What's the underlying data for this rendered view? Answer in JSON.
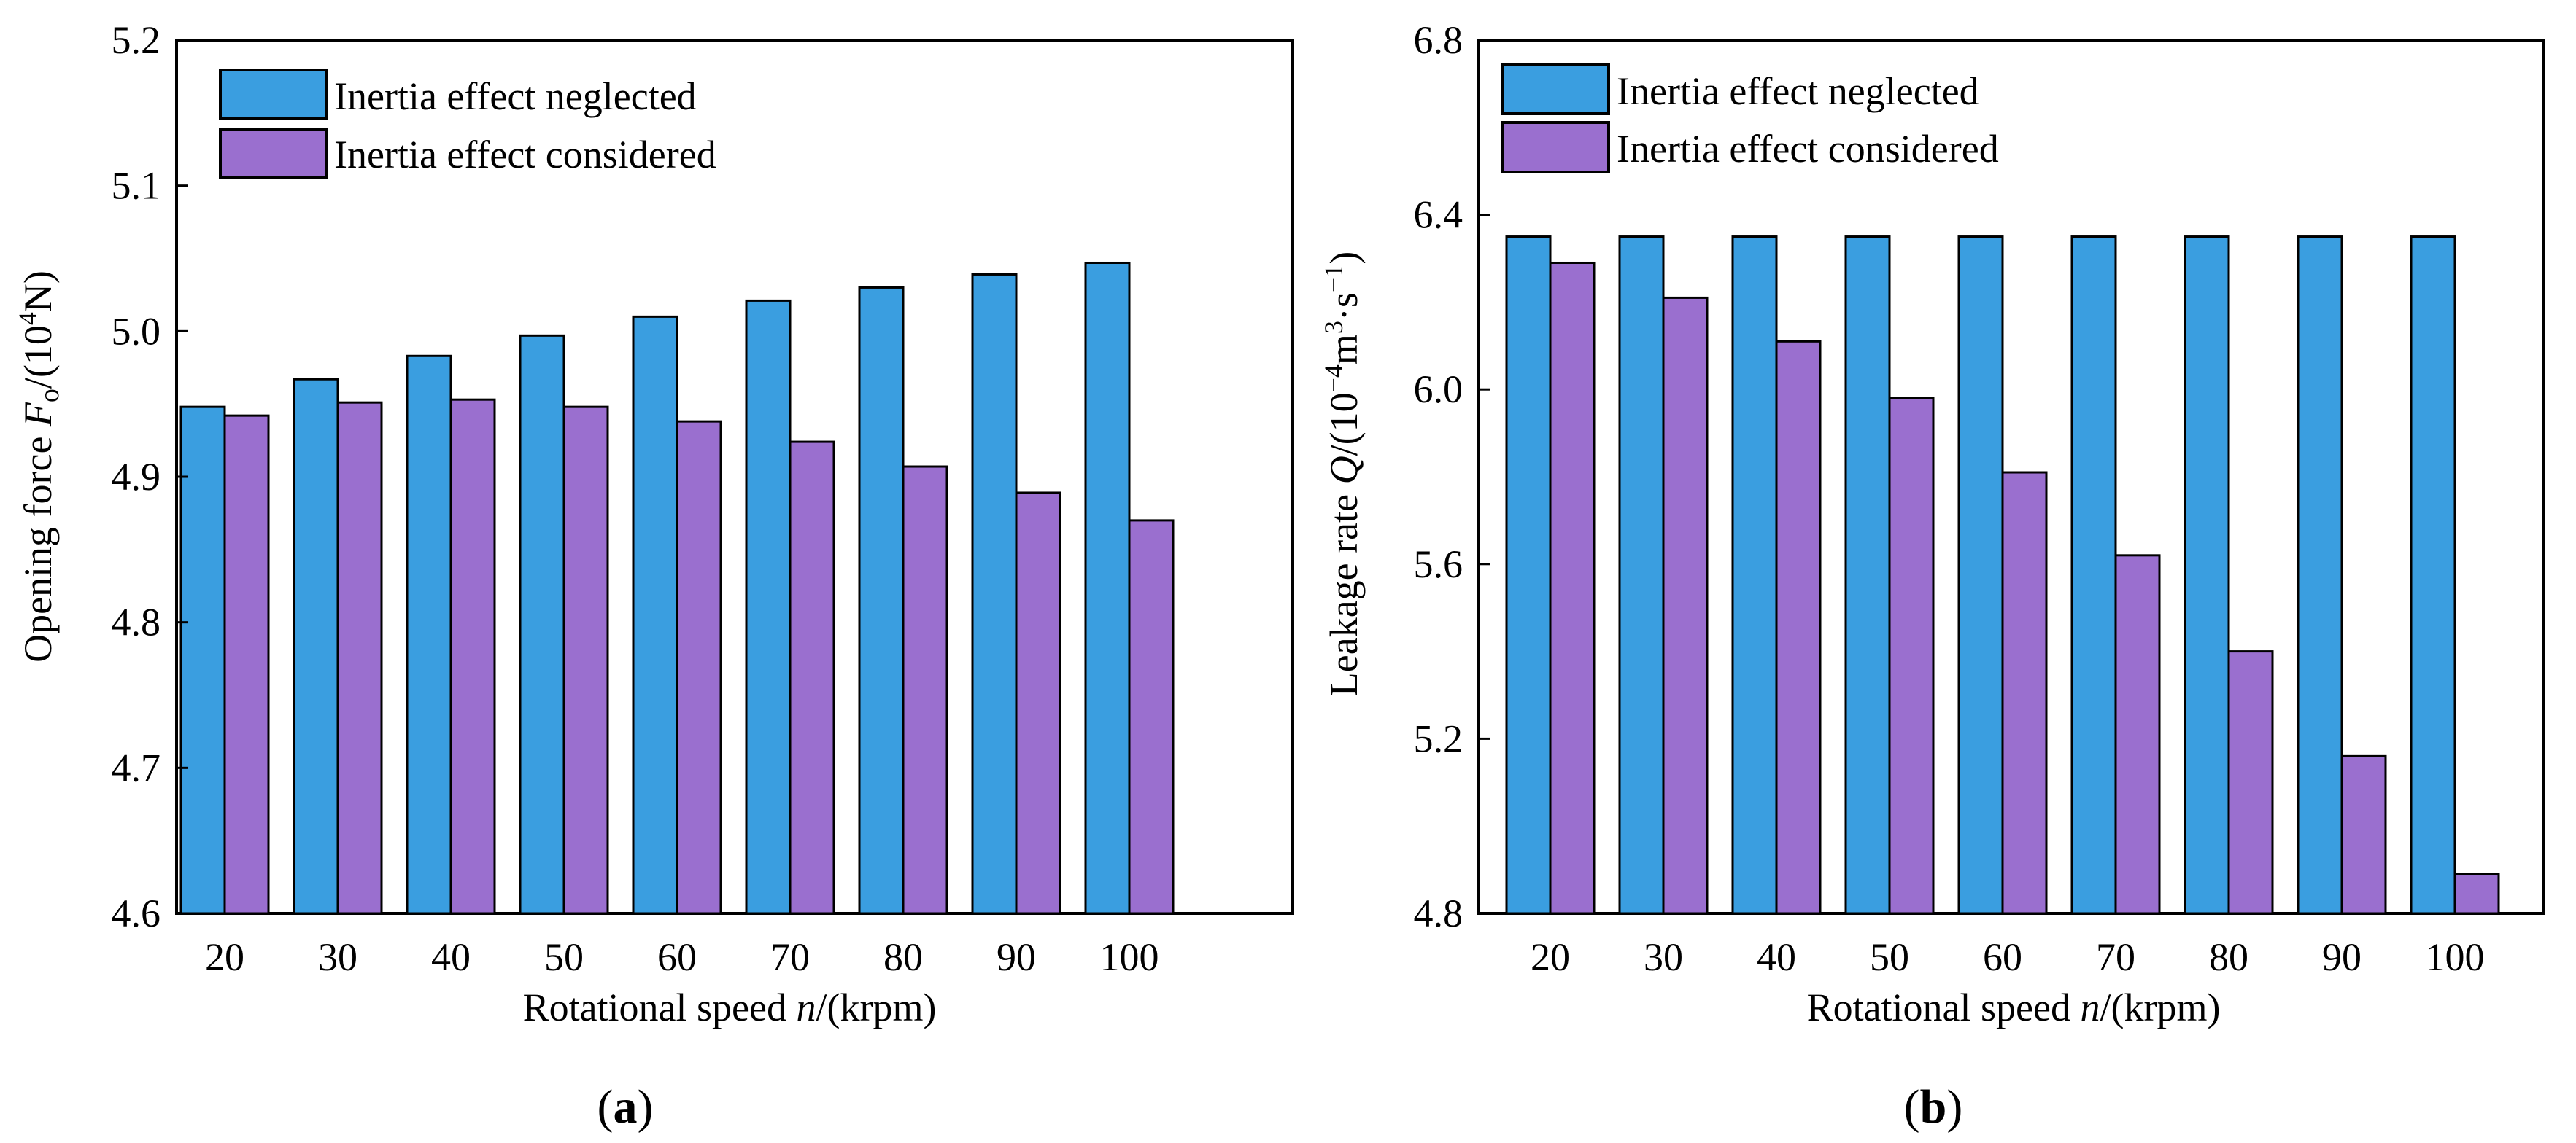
{
  "colors": {
    "neglected": "#3a9ee0",
    "considered": "#9a6fcf",
    "stroke": "#000000"
  },
  "chart_data": [
    {
      "type": "bar",
      "panel_label_open": "(",
      "panel_label_letter": "a",
      "panel_label_close": ")",
      "categories": [
        "20",
        "30",
        "40",
        "50",
        "60",
        "70",
        "80",
        "90",
        "100"
      ],
      "series": [
        {
          "name": "Inertia effect neglected",
          "values": [
            4.948,
            4.967,
            4.983,
            4.997,
            5.01,
            5.021,
            5.03,
            5.039,
            5.047
          ]
        },
        {
          "name": "Inertia effect considered",
          "values": [
            4.942,
            4.951,
            4.953,
            4.948,
            4.938,
            4.924,
            4.907,
            4.889,
            4.87
          ]
        }
      ],
      "xlabel_prefix": "Rotational speed ",
      "xlabel_var": "n",
      "xlabel_suffix": "/(krpm)",
      "ylabel_prefix": "Opening force ",
      "ylabel_var": "F",
      "ylabel_var_sub": "o",
      "ylabel_unit_open": "/(10",
      "ylabel_unit_sup": "4",
      "ylabel_unit_close": "N)",
      "ylim": [
        4.6,
        5.2
      ],
      "yticks": [
        "4.6",
        "4.7",
        "4.8",
        "4.9",
        "5.0",
        "5.1",
        "5.2"
      ],
      "legend_position": "top-left"
    },
    {
      "type": "bar",
      "panel_label_open": "(",
      "panel_label_letter": "b",
      "panel_label_close": ")",
      "categories": [
        "20",
        "30",
        "40",
        "50",
        "60",
        "70",
        "80",
        "90",
        "100"
      ],
      "series": [
        {
          "name": "Inertia effect neglected",
          "values": [
            6.35,
            6.35,
            6.35,
            6.35,
            6.35,
            6.35,
            6.35,
            6.35,
            6.35
          ]
        },
        {
          "name": "Inertia effect considered",
          "values": [
            6.29,
            6.21,
            6.11,
            5.98,
            5.81,
            5.62,
            5.4,
            5.16,
            4.89
          ]
        }
      ],
      "xlabel_prefix": "Rotational speed ",
      "xlabel_var": "n",
      "xlabel_suffix": "/(krpm)",
      "ylabel_prefix": "Leakage rate ",
      "ylabel_var": "Q",
      "ylabel_unit_open": "/(10",
      "ylabel_unit_sup": "−4",
      "ylabel_unit_mid": "m",
      "ylabel_unit_sup2": "3",
      "ylabel_unit_dot": "·s",
      "ylabel_unit_sup3": "−1",
      "ylabel_unit_close": ")",
      "ylim": [
        4.8,
        6.8
      ],
      "yticks": [
        "4.8",
        "5.2",
        "5.6",
        "6.0",
        "6.4",
        "6.8"
      ],
      "legend_position": "top-left"
    }
  ]
}
